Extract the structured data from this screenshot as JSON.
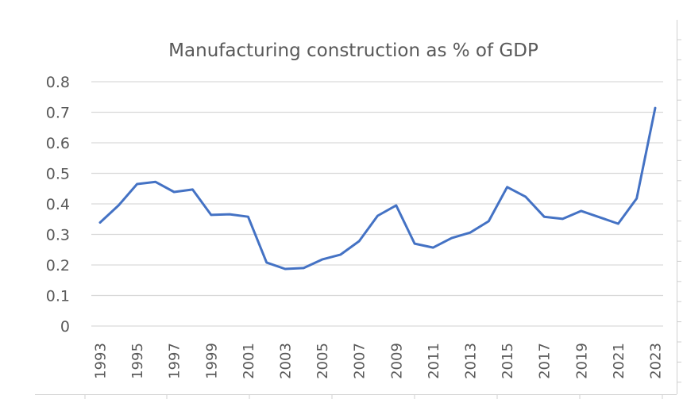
{
  "chart_data": {
    "type": "line",
    "title": "Manufacturing construction as % of GDP",
    "xlabel": "",
    "ylabel": "",
    "ylim": [
      0,
      0.8
    ],
    "yticks": [
      "0",
      "0.1",
      "0.2",
      "0.3",
      "0.4",
      "0.5",
      "0.6",
      "0.7",
      "0.8"
    ],
    "ytick_values": [
      0,
      0.1,
      0.2,
      0.3,
      0.4,
      0.5,
      0.6,
      0.7,
      0.8
    ],
    "x": [
      1993,
      1994,
      1995,
      1996,
      1997,
      1998,
      1999,
      2000,
      2001,
      2002,
      2003,
      2004,
      2005,
      2006,
      2007,
      2008,
      2009,
      2010,
      2011,
      2012,
      2013,
      2014,
      2015,
      2016,
      2017,
      2018,
      2019,
      2020,
      2021,
      2022,
      2023
    ],
    "xtick_labels": [
      "1993",
      "1995",
      "1997",
      "1999",
      "2001",
      "2003",
      "2005",
      "2007",
      "2009",
      "2011",
      "2013",
      "2015",
      "2017",
      "2019",
      "2021",
      "2023"
    ],
    "grid": true,
    "legend": "none",
    "series": [
      {
        "name": "Manufacturing construction as % of GDP",
        "color": "#4472C4",
        "values": [
          0.339,
          0.395,
          0.465,
          0.472,
          0.439,
          0.447,
          0.364,
          0.366,
          0.358,
          0.208,
          0.187,
          0.19,
          0.218,
          0.234,
          0.278,
          0.361,
          0.395,
          0.27,
          0.257,
          0.288,
          0.306,
          0.343,
          0.455,
          0.423,
          0.358,
          0.351,
          0.377,
          0.356,
          0.335,
          0.418,
          0.714
        ]
      }
    ]
  }
}
